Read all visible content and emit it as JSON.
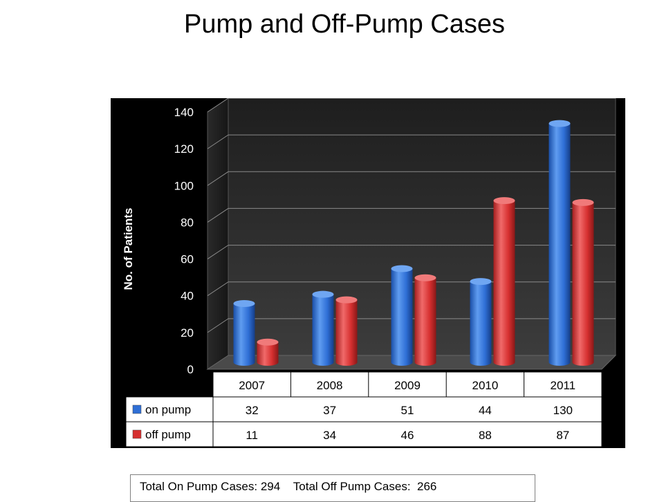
{
  "chart_data": {
    "type": "bar",
    "title": "Pump and Off-Pump Cases",
    "ylabel": "No. of Patients",
    "xlabel": "",
    "ylim": [
      0,
      140
    ],
    "yticks": [
      0,
      20,
      40,
      60,
      80,
      100,
      120,
      140
    ],
    "categories": [
      "2007",
      "2008",
      "2009",
      "2010",
      "2011"
    ],
    "series": [
      {
        "name": "on pump",
        "values": [
          32,
          37,
          51,
          44,
          130
        ],
        "color": "#2f6fd6"
      },
      {
        "name": "off pump",
        "values": [
          11,
          34,
          46,
          88,
          87
        ],
        "color": "#d63030"
      }
    ],
    "grid": true,
    "legend": "data-table",
    "style": "3d-cylinder"
  },
  "footer": {
    "on_pump_label": "Total On Pump Cases:",
    "on_pump_total": "294",
    "off_pump_label": "Total Off Pump Cases:",
    "off_pump_total": "266"
  }
}
